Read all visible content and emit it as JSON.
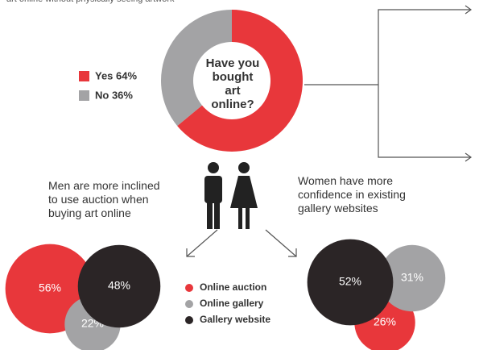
{
  "header": {
    "text": "art online without physically seeing artwork"
  },
  "chart_data": [
    {
      "type": "donut",
      "title": "Have you bought art online?",
      "categories": [
        "Yes 64%",
        "No 36%"
      ],
      "values": [
        64,
        36
      ],
      "colors": [
        "#e8373b",
        "#a3a3a5"
      ]
    },
    {
      "type": "bubble",
      "title": "Men are more inclined to use auction when buying art online",
      "values": [
        56,
        22,
        48
      ],
      "value_labels": [
        "56%",
        "22%",
        "48%"
      ]
    },
    {
      "type": "bubble",
      "title": "Women have more confidence in existing gallery websites",
      "values": [
        26,
        31,
        52
      ],
      "value_labels": [
        "26%",
        "31%",
        "52%"
      ]
    }
  ],
  "legend": {
    "items": [
      {
        "name": "Online auction",
        "color": "#e8373b"
      },
      {
        "name": "Online gallery",
        "color": "#a3a3a5"
      },
      {
        "name": "Gallery website",
        "color": "#2b2526"
      }
    ]
  }
}
